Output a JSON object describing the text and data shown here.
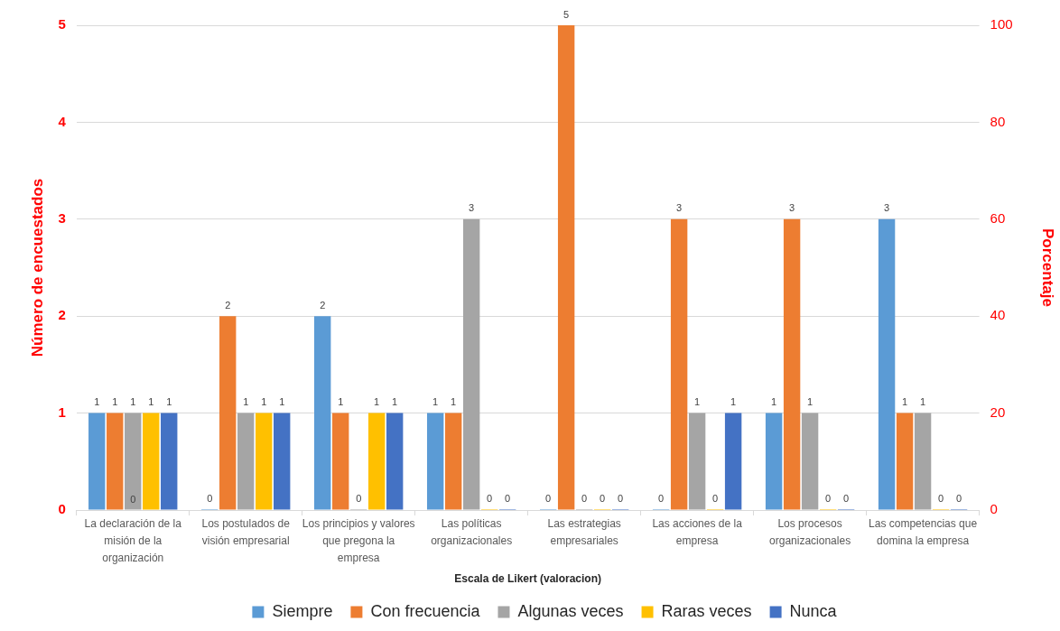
{
  "chart_data": {
    "type": "bar",
    "categories": [
      "La declaración de la misión de la organización",
      "Los postulados de visión empresarial",
      "Los principios y valores que pregona la empresa",
      "Las políticas organizacionales",
      "Las estrategias empresariales",
      "Las acciones de la empresa",
      "Los procesos organizacionales",
      "Las competencias que domina la empresa"
    ],
    "series": [
      {
        "name": "Siempre",
        "color": "#5b9bd5",
        "values": [
          1,
          0,
          2,
          1,
          0,
          0,
          1,
          3
        ]
      },
      {
        "name": "Con frecuencia",
        "color": "#ed7d31",
        "values": [
          1,
          2,
          1,
          1,
          5,
          3,
          3,
          1
        ]
      },
      {
        "name": "Algunas veces",
        "color": "#a5a5a5",
        "values": [
          1,
          1,
          0,
          3,
          0,
          1,
          1,
          1
        ]
      },
      {
        "name": "Raras veces",
        "color": "#ffc000",
        "values": [
          1,
          1,
          1,
          0,
          0,
          0,
          0,
          0
        ]
      },
      {
        "name": "Nunca",
        "color": "#4472c4",
        "values": [
          1,
          1,
          1,
          0,
          0,
          1,
          0,
          0
        ]
      }
    ],
    "xlabel": "Escala de Likert (valoracion)",
    "ylabel": "Número de encuestados",
    "y2label": "Porcentaje",
    "ylim": [
      0,
      5
    ],
    "yticks": [
      0,
      1,
      2,
      3,
      4,
      5
    ],
    "y2lim": [
      0,
      100
    ],
    "y2ticks": [
      0,
      20,
      40,
      60,
      80,
      100
    ],
    "grid": "y",
    "legend": "bottom",
    "data_labels": true,
    "annotations": [
      {
        "text": "0",
        "x": "La declaración de la misión de la organización",
        "y": 0
      }
    ]
  }
}
